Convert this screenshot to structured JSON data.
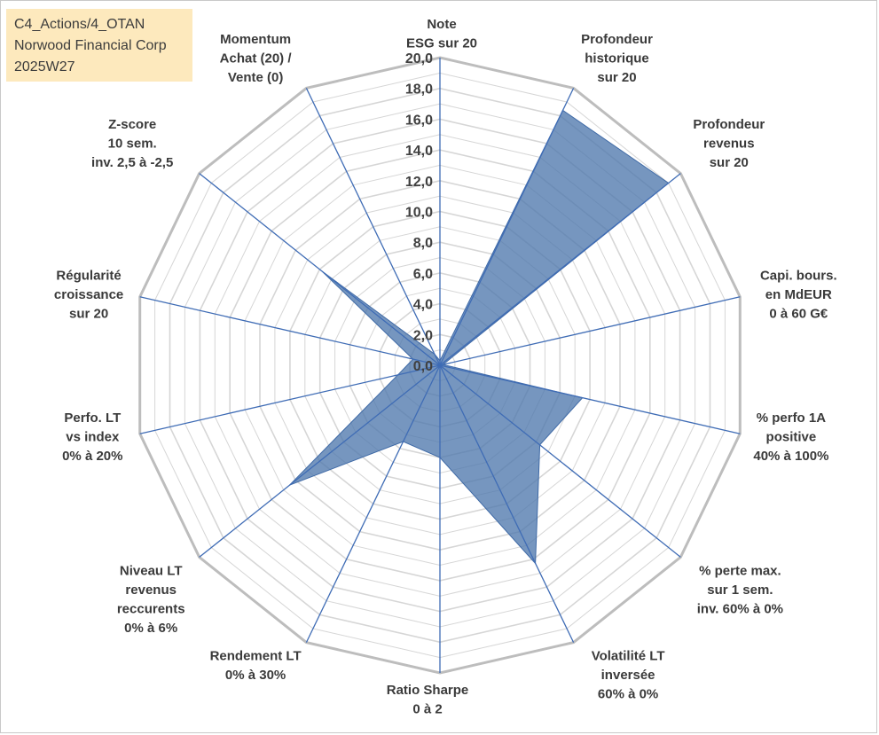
{
  "chart_data": {
    "type": "radar",
    "title_lines": [
      "C4_Actions/4_OTAN",
      "Norwood Financial Corp",
      "2025W27"
    ],
    "rlim": [
      0,
      20
    ],
    "r_ticks": [
      "0,0",
      "2,0",
      "4,0",
      "6,0",
      "8,0",
      "10,0",
      "12,0",
      "14,0",
      "16,0",
      "18,0",
      "20,0"
    ],
    "axes": [
      {
        "label": [
          "Note",
          "ESG sur 20"
        ],
        "value": 0.3
      },
      {
        "label": [
          "Profondeur",
          "historique",
          "sur 20"
        ],
        "value": 18.4
      },
      {
        "label": [
          "Profondeur",
          "revenus",
          "sur 20"
        ],
        "value": 19.0
      },
      {
        "label": [
          "Capi. bours.",
          "en MdEUR",
          "0 à 60 G€"
        ],
        "value": 0.2
      },
      {
        "label": [
          "% perfo 1A",
          "positive",
          "40% à 100%"
        ],
        "value": 9.5
      },
      {
        "label": [
          "% perte max.",
          "sur 1 sem.",
          "inv. 60% à 0%"
        ],
        "value": 8.3
      },
      {
        "label": [
          "Volatilité LT",
          "inversée",
          "60% à 0%"
        ],
        "value": 14.3
      },
      {
        "label": [
          "Ratio Sharpe",
          "0 à 2"
        ],
        "value": 6.0
      },
      {
        "label": [
          "Rendement LT",
          "0% à 30%"
        ],
        "value": 5.5
      },
      {
        "label": [
          "Niveau LT",
          "revenus",
          "reccurents",
          "0% à 6%"
        ],
        "value": 12.5
      },
      {
        "label": [
          "Perfo. LT",
          "vs index",
          "0% à 20%"
        ],
        "value": 2.8
      },
      {
        "label": [
          "Régularité",
          "croissance",
          "sur 20"
        ],
        "value": 1.8
      },
      {
        "label": [
          "Z-score",
          "10 sem.",
          "inv. 2,5 à -2,5"
        ],
        "value": 9.8
      },
      {
        "label": [
          "Momentum",
          "Achat (20) /",
          "Vente (0)"
        ],
        "value": 0.8
      }
    ],
    "grid": true,
    "colors": {
      "fill": "#4f79ad",
      "fill_opacity": 0.78,
      "outer_ring": "#bdbdbd",
      "inner_ring": "#d6d6d6",
      "spoke": "#3f6cb5",
      "title_bg": "#fde9bd"
    }
  }
}
